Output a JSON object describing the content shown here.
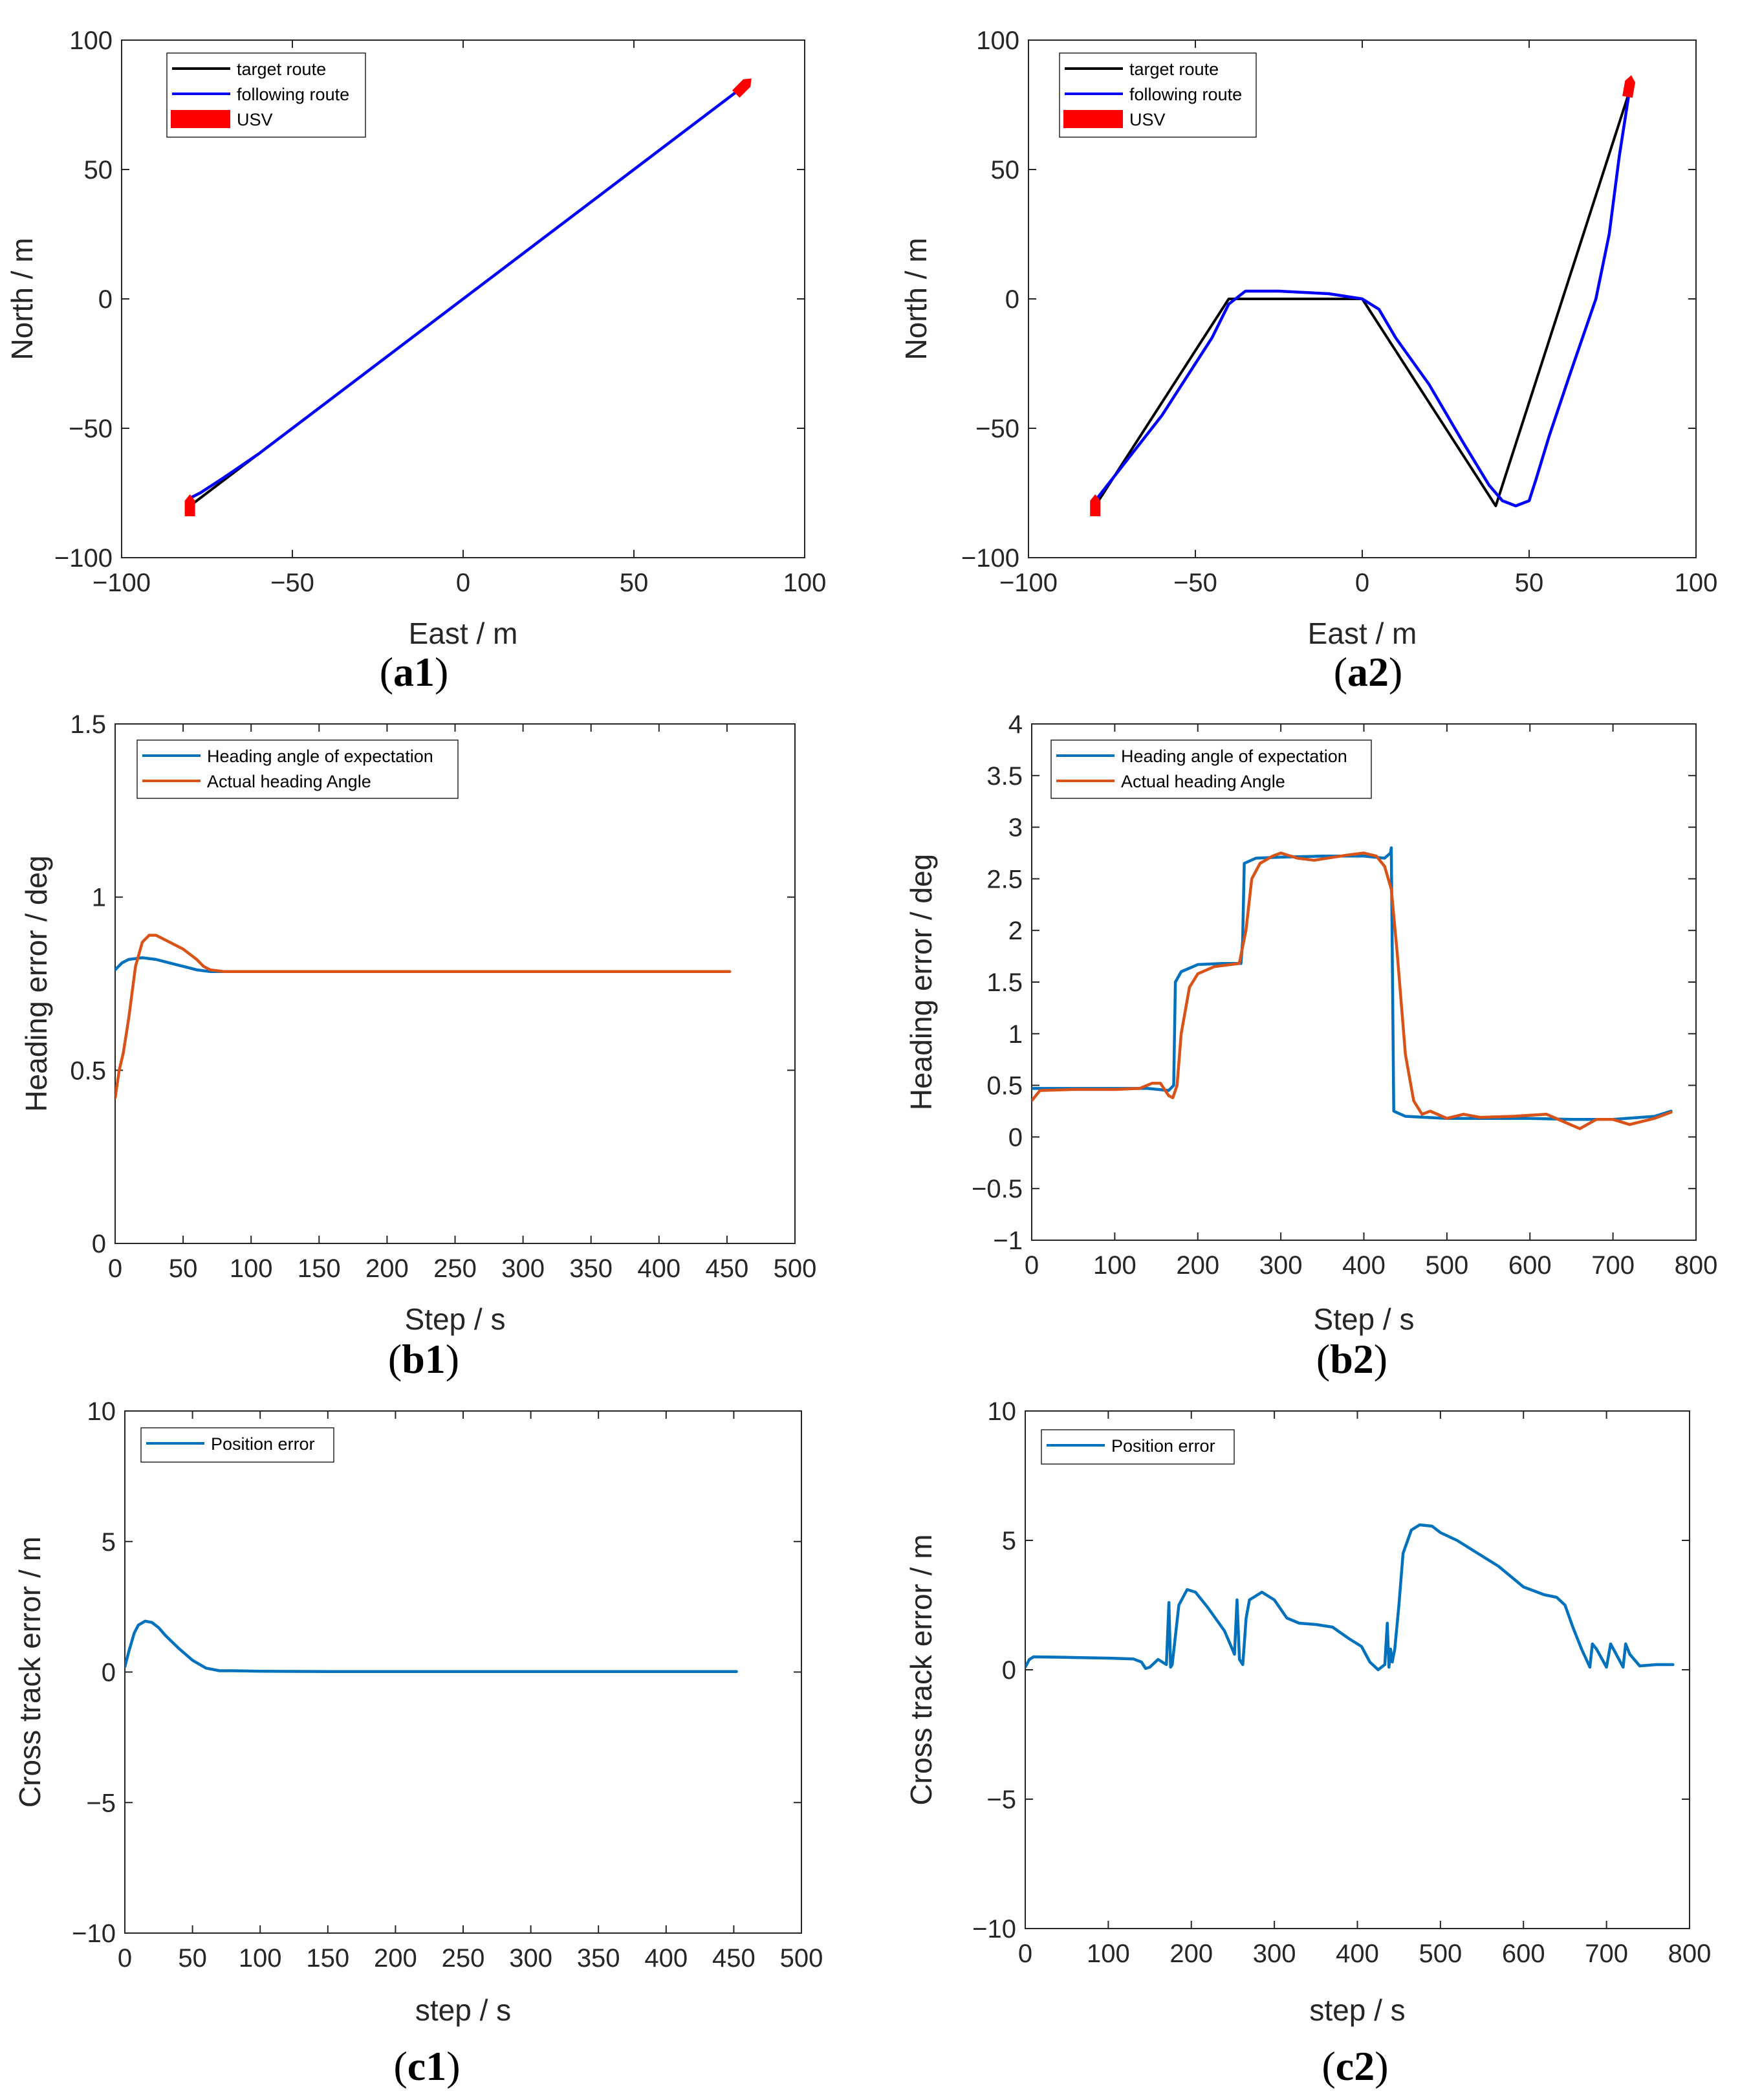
{
  "chart_data": [
    {
      "id": "a1",
      "caption": "a1",
      "type": "line",
      "xlabel": "East / m",
      "ylabel": "North / m",
      "xlim": [
        -100,
        100
      ],
      "ylim": [
        -100,
        100
      ],
      "xticks": [
        -100,
        -50,
        0,
        50,
        100
      ],
      "yticks": [
        -100,
        -50,
        0,
        50,
        100
      ],
      "xtick_labels": [
        "−100",
        "−50",
        "0",
        "50",
        "100"
      ],
      "ytick_labels": [
        "−100",
        "−50",
        "0",
        "50",
        "100"
      ],
      "legend": {
        "position": "top-left",
        "entries": [
          "target route",
          "following route",
          "USV"
        ]
      },
      "series": [
        {
          "name": "target route",
          "color": "#000000",
          "x": [
            -80,
            80
          ],
          "y": [
            -80,
            80
          ]
        },
        {
          "name": "following route",
          "color": "#0000ff",
          "x": [
            -80,
            -77,
            -70,
            -60,
            -40,
            0,
            40,
            80
          ],
          "y": [
            -77,
            -75,
            -69,
            -60,
            -40,
            0,
            40,
            80
          ]
        }
      ],
      "usv_markers": [
        {
          "x": -80,
          "y": -80,
          "heading": 90
        },
        {
          "x": 82,
          "y": 82,
          "heading": 45
        }
      ]
    },
    {
      "id": "a2",
      "caption": "a2",
      "type": "line",
      "xlabel": "East / m",
      "ylabel": "North / m",
      "xlim": [
        -100,
        100
      ],
      "ylim": [
        -100,
        100
      ],
      "xticks": [
        -100,
        -50,
        0,
        50,
        100
      ],
      "yticks": [
        -100,
        -50,
        0,
        50,
        100
      ],
      "xtick_labels": [
        "−100",
        "−50",
        "0",
        "50",
        "100"
      ],
      "ytick_labels": [
        "−100",
        "−50",
        "0",
        "50",
        "100"
      ],
      "legend": {
        "position": "top-left",
        "entries": [
          "target route",
          "following route",
          "USV"
        ]
      },
      "series": [
        {
          "name": "target route",
          "color": "#000000",
          "x": [
            -80,
            -40,
            0,
            40,
            80
          ],
          "y": [
            -80,
            0,
            0,
            -80,
            80
          ]
        },
        {
          "name": "following route",
          "color": "#0000ff",
          "x": [
            -80,
            -60,
            -45,
            -40,
            -35,
            -25,
            -10,
            0,
            5,
            10,
            20,
            30,
            38,
            42,
            46,
            50,
            52,
            56,
            62,
            70,
            74,
            77,
            80
          ],
          "y": [
            -78,
            -45,
            -15,
            -2,
            3,
            3,
            2,
            0,
            -4,
            -15,
            -33,
            -55,
            -72,
            -78,
            -80,
            -78,
            -70,
            -53,
            -30,
            0,
            25,
            55,
            80
          ]
        }
      ],
      "usv_markers": [
        {
          "x": -80,
          "y": -80,
          "heading": 90
        },
        {
          "x": 80,
          "y": 82,
          "heading": 80
        }
      ]
    },
    {
      "id": "b1",
      "caption": "b1",
      "type": "line",
      "xlabel": "Step / s",
      "ylabel": "Heading error / deg",
      "xlim": [
        0,
        500
      ],
      "ylim": [
        0,
        1.5
      ],
      "xticks": [
        0,
        50,
        100,
        150,
        200,
        250,
        300,
        350,
        400,
        450,
        500
      ],
      "yticks": [
        0,
        0.5,
        1,
        1.5
      ],
      "xtick_labels": [
        "0",
        "50",
        "100",
        "150",
        "200",
        "250",
        "300",
        "350",
        "400",
        "450",
        "500"
      ],
      "ytick_labels": [
        "0",
        "0.5",
        "1",
        "1.5"
      ],
      "legend": {
        "position": "top-left",
        "entries": [
          "Heading angle of expectation",
          "Actual heading Angle"
        ]
      },
      "series": [
        {
          "name": "Heading angle of expectation",
          "color": "#0072bd",
          "x": [
            0,
            5,
            10,
            20,
            30,
            40,
            50,
            60,
            70,
            80,
            100,
            150,
            200,
            300,
            400,
            452
          ],
          "y": [
            0.79,
            0.81,
            0.82,
            0.825,
            0.82,
            0.81,
            0.8,
            0.79,
            0.785,
            0.785,
            0.785,
            0.785,
            0.785,
            0.785,
            0.785,
            0.785
          ]
        },
        {
          "name": "Actual heading Angle",
          "color": "#d95319",
          "x": [
            0,
            3,
            6,
            10,
            15,
            20,
            25,
            30,
            35,
            40,
            50,
            60,
            65,
            70,
            80,
            100,
            150,
            200,
            300,
            400,
            452
          ],
          "y": [
            0.42,
            0.5,
            0.55,
            0.65,
            0.8,
            0.87,
            0.89,
            0.89,
            0.88,
            0.87,
            0.85,
            0.82,
            0.8,
            0.79,
            0.785,
            0.785,
            0.785,
            0.785,
            0.785,
            0.785,
            0.785
          ]
        }
      ]
    },
    {
      "id": "b2",
      "caption": "b2",
      "type": "line",
      "xlabel": "Step / s",
      "ylabel": "Heading error / deg",
      "xlim": [
        0,
        800
      ],
      "ylim": [
        -1,
        4
      ],
      "xticks": [
        0,
        100,
        200,
        300,
        400,
        500,
        600,
        700,
        800
      ],
      "yticks": [
        -1,
        -0.5,
        0,
        0.5,
        1,
        1.5,
        2,
        2.5,
        3,
        3.5,
        4
      ],
      "xtick_labels": [
        "0",
        "100",
        "200",
        "300",
        "400",
        "500",
        "600",
        "700",
        "800"
      ],
      "ytick_labels": [
        "−1",
        "−0.5",
        "0",
        "0.5",
        "1",
        "1.5",
        "2",
        "2.5",
        "3",
        "3.5",
        "4"
      ],
      "legend": {
        "position": "top-left",
        "entries": [
          "Heading angle of expectation",
          "Actual heading Angle"
        ]
      },
      "series": [
        {
          "name": "Heading angle of expectation",
          "color": "#0072bd",
          "x": [
            0,
            50,
            100,
            140,
            165,
            171,
            173,
            180,
            200,
            230,
            252,
            254,
            256,
            270,
            300,
            350,
            400,
            425,
            432,
            433,
            436,
            450,
            500,
            600,
            650,
            700,
            750,
            770
          ],
          "y": [
            0.47,
            0.47,
            0.47,
            0.47,
            0.45,
            0.5,
            1.5,
            1.6,
            1.67,
            1.68,
            1.68,
            1.9,
            2.65,
            2.7,
            2.71,
            2.72,
            2.72,
            2.7,
            2.75,
            2.8,
            0.25,
            0.2,
            0.18,
            0.18,
            0.17,
            0.17,
            0.2,
            0.25
          ]
        },
        {
          "name": "Actual heading Angle",
          "color": "#d95319",
          "x": [
            0,
            10,
            50,
            100,
            130,
            145,
            155,
            165,
            170,
            175,
            180,
            190,
            200,
            220,
            250,
            258,
            265,
            275,
            290,
            300,
            320,
            340,
            380,
            400,
            415,
            425,
            433,
            440,
            450,
            460,
            470,
            480,
            500,
            520,
            540,
            580,
            620,
            640,
            660,
            680,
            700,
            720,
            750,
            770
          ],
          "y": [
            0.35,
            0.45,
            0.46,
            0.46,
            0.47,
            0.52,
            0.52,
            0.4,
            0.38,
            0.5,
            1.0,
            1.45,
            1.58,
            1.65,
            1.68,
            2.0,
            2.5,
            2.65,
            2.72,
            2.75,
            2.7,
            2.68,
            2.73,
            2.75,
            2.72,
            2.62,
            2.4,
            1.8,
            0.8,
            0.35,
            0.22,
            0.25,
            0.18,
            0.22,
            0.19,
            0.2,
            0.22,
            0.15,
            0.08,
            0.17,
            0.17,
            0.12,
            0.18,
            0.24
          ]
        }
      ]
    },
    {
      "id": "c1",
      "caption": "c1",
      "type": "line",
      "xlabel": "step / s",
      "ylabel": "Cross track error / m",
      "xlim": [
        0,
        500
      ],
      "ylim": [
        -10,
        10
      ],
      "xticks": [
        0,
        50,
        100,
        150,
        200,
        250,
        300,
        350,
        400,
        450,
        500
      ],
      "yticks": [
        -10,
        -5,
        0,
        5,
        10
      ],
      "xtick_labels": [
        "0",
        "50",
        "100",
        "150",
        "200",
        "250",
        "300",
        "350",
        "400",
        "450",
        "500"
      ],
      "ytick_labels": [
        "−10",
        "−5",
        "0",
        "5",
        "10"
      ],
      "legend": {
        "position": "top-left",
        "entries": [
          "Position error"
        ]
      },
      "series": [
        {
          "name": "Position error",
          "color": "#0072bd",
          "x": [
            0,
            3,
            7,
            10,
            15,
            20,
            25,
            30,
            40,
            50,
            60,
            70,
            80,
            100,
            150,
            200,
            300,
            400,
            452
          ],
          "y": [
            0.2,
            0.8,
            1.5,
            1.8,
            1.95,
            1.9,
            1.7,
            1.4,
            0.9,
            0.45,
            0.15,
            0.05,
            0.05,
            0.03,
            0.02,
            0.02,
            0.02,
            0.02,
            0.02
          ]
        }
      ]
    },
    {
      "id": "c2",
      "caption": "c2",
      "type": "line",
      "xlabel": "step / s",
      "ylabel": "Cross track error / m",
      "xlim": [
        0,
        800
      ],
      "ylim": [
        -10,
        10
      ],
      "xticks": [
        0,
        100,
        200,
        300,
        400,
        500,
        600,
        700,
        800
      ],
      "yticks": [
        -10,
        -5,
        0,
        5,
        10
      ],
      "xtick_labels": [
        "0",
        "100",
        "200",
        "300",
        "400",
        "500",
        "600",
        "700",
        "800"
      ],
      "ytick_labels": [
        "−10",
        "−5",
        "0",
        "5",
        "10"
      ],
      "legend": {
        "position": "top-left",
        "entries": [
          "Position error"
        ]
      },
      "series": [
        {
          "name": "Position error",
          "color": "#0072bd",
          "x": [
            0,
            5,
            10,
            50,
            100,
            130,
            140,
            145,
            150,
            160,
            170,
            173,
            175,
            177,
            185,
            195,
            205,
            220,
            240,
            252,
            255,
            258,
            262,
            266,
            270,
            285,
            300,
            315,
            330,
            350,
            370,
            390,
            405,
            415,
            425,
            433,
            436,
            438,
            440,
            442,
            445,
            450,
            455,
            465,
            475,
            490,
            500,
            520,
            545,
            570,
            600,
            625,
            640,
            650,
            660,
            670,
            680,
            683,
            688,
            700,
            705,
            710,
            720,
            723,
            728,
            740,
            760,
            780
          ],
          "y": [
            0.1,
            0.4,
            0.5,
            0.48,
            0.45,
            0.42,
            0.3,
            0.05,
            0.1,
            0.4,
            0.2,
            2.6,
            0.1,
            0.2,
            2.5,
            3.1,
            3.0,
            2.4,
            1.5,
            0.6,
            2.7,
            0.4,
            0.2,
            2.0,
            2.7,
            3.0,
            2.7,
            2.0,
            1.8,
            1.75,
            1.65,
            1.2,
            0.9,
            0.3,
            0.0,
            0.2,
            1.8,
            0.1,
            0.8,
            0.3,
            0.8,
            2.5,
            4.5,
            5.4,
            5.6,
            5.55,
            5.3,
            5.0,
            4.5,
            4.0,
            3.2,
            2.9,
            2.8,
            2.5,
            1.6,
            0.8,
            0.1,
            1.0,
            0.8,
            0.1,
            1.0,
            0.7,
            0.1,
            1.0,
            0.6,
            0.15,
            0.2,
            0.2
          ]
        }
      ]
    }
  ]
}
